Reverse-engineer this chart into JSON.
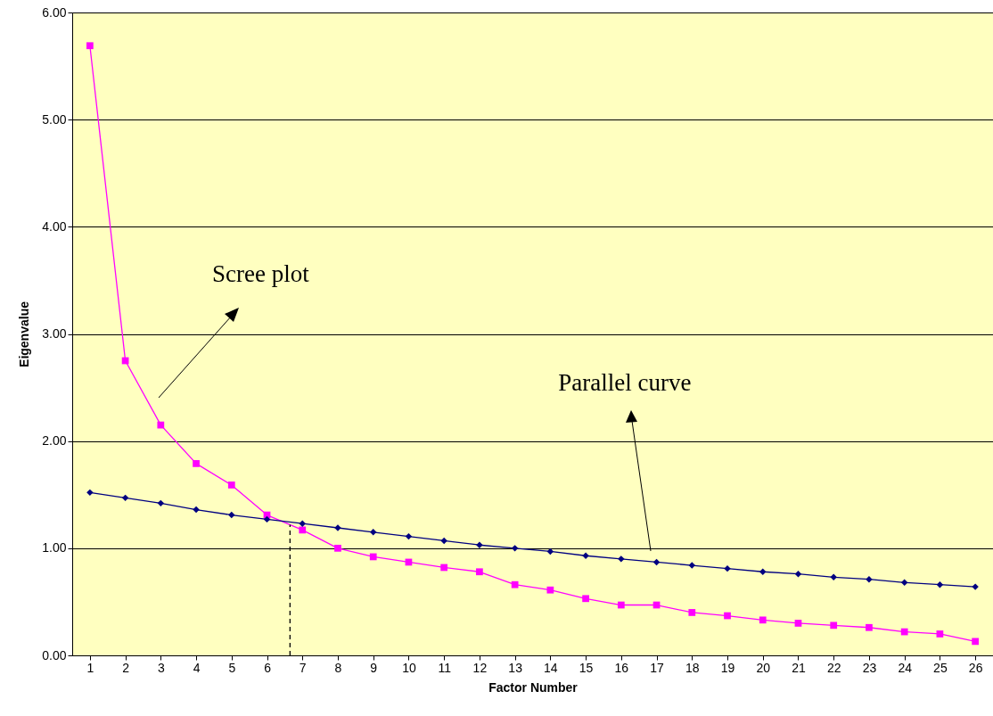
{
  "chart_data": {
    "type": "line",
    "xlabel": "Factor Number",
    "ylabel": "Eigenvalue",
    "x": [
      1,
      2,
      3,
      4,
      5,
      6,
      7,
      8,
      9,
      10,
      11,
      12,
      13,
      14,
      15,
      16,
      17,
      18,
      19,
      20,
      21,
      22,
      23,
      24,
      25,
      26
    ],
    "xlim": [
      0.5,
      26.5
    ],
    "xticks": [
      1,
      2,
      3,
      4,
      5,
      6,
      7,
      8,
      9,
      10,
      11,
      12,
      13,
      14,
      15,
      16,
      17,
      18,
      19,
      20,
      21,
      22,
      23,
      24,
      25,
      26
    ],
    "ylim": [
      0,
      6
    ],
    "yticks": [
      {
        "value": 0,
        "label": "0.00"
      },
      {
        "value": 1,
        "label": "1.00"
      },
      {
        "value": 2,
        "label": "2.00"
      },
      {
        "value": 3,
        "label": "3.00"
      },
      {
        "value": 4,
        "label": "4.00"
      },
      {
        "value": 5,
        "label": "5.00"
      },
      {
        "value": 6,
        "label": "6.00"
      }
    ],
    "grid": "y",
    "series": [
      {
        "color": "#ff00ff",
        "marker": "square",
        "values": [
          5.69,
          2.75,
          2.15,
          1.79,
          1.59,
          1.31,
          1.17,
          1.0,
          0.92,
          0.87,
          0.82,
          0.78,
          0.66,
          0.61,
          0.53,
          0.47,
          0.47,
          0.4,
          0.37,
          0.33,
          0.3,
          0.28,
          0.26,
          0.22,
          0.2,
          0.13
        ]
      },
      {
        "color": "#000080",
        "marker": "diamond",
        "values": [
          1.52,
          1.47,
          1.42,
          1.36,
          1.31,
          1.27,
          1.23,
          1.19,
          1.15,
          1.11,
          1.07,
          1.03,
          1.0,
          0.97,
          0.93,
          0.9,
          0.87,
          0.84,
          0.81,
          0.78,
          0.76,
          0.73,
          0.71,
          0.68,
          0.66,
          0.64
        ]
      },
      {
        "type": "line",
        "color": "#000000",
        "marker": "none",
        "line_style": "dashed",
        "x": [
          6.65,
          6.65
        ],
        "values": [
          0,
          1.22
        ]
      }
    ],
    "annotations": [
      "Scree plot",
      "Parallel curve"
    ]
  }
}
